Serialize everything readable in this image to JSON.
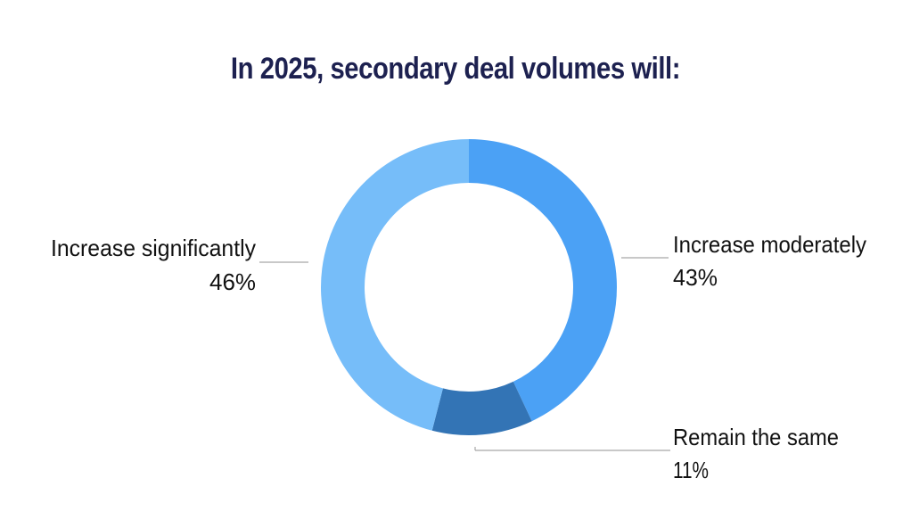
{
  "chart_data": {
    "type": "pie",
    "variant": "donut",
    "title": "In 2025, secondary deal volumes will:",
    "start": "top",
    "direction": "clockwise",
    "slices": [
      {
        "label": "Increase moderately",
        "value": 43,
        "value_label": "43%",
        "color": "#4BA1F5",
        "label_side": "right"
      },
      {
        "label": "Remain the same",
        "value": 11,
        "value_label": "11%",
        "color": "#3374B5",
        "label_side": "bottom-right"
      },
      {
        "label": "Increase significantly",
        "value": 46,
        "value_label": "46%",
        "color": "#76BDF9",
        "label_side": "left"
      }
    ],
    "leader_line_color": "#a8a8a8",
    "title_color": "#1d2150"
  }
}
